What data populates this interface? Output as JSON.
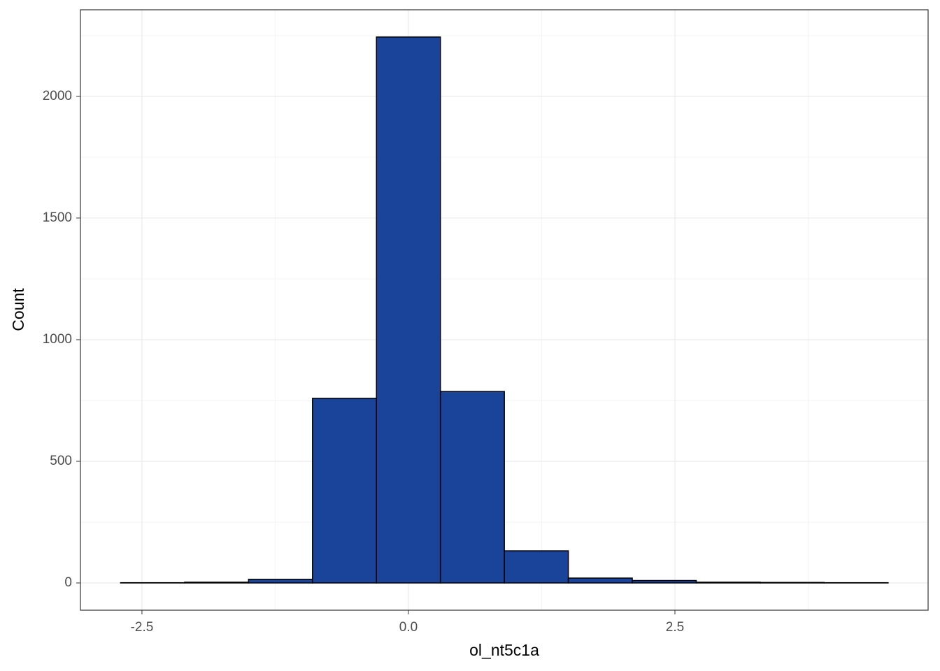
{
  "chart_data": {
    "type": "histogram",
    "x_label": "ol_nt5c1a",
    "y_label": "Count",
    "bins": [
      -2.7,
      -2.1,
      -1.5,
      -0.9,
      -0.3,
      0.3,
      0.9,
      1.5,
      2.1,
      2.7,
      3.3,
      3.9,
      4.5
    ],
    "values": [
      1,
      3,
      15,
      759,
      2244,
      787,
      132,
      20,
      10,
      3,
      2,
      1
    ],
    "color": "#19449a",
    "xlim": [
      -3.077,
      4.875
    ],
    "ylim": [
      -112,
      2356
    ],
    "xticks": [
      {
        "value": -2.5,
        "label": "-2.5"
      },
      {
        "value": 0,
        "label": "0.0"
      },
      {
        "value": 2.5,
        "label": "2.5"
      }
    ],
    "yticks": [
      0,
      500,
      1000,
      1500,
      2000
    ],
    "grid": true,
    "minor_grid": true
  }
}
